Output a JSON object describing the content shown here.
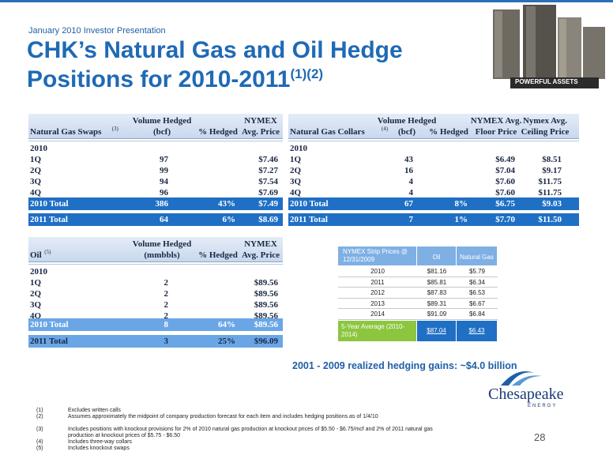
{
  "header": {
    "kicker": "January 2010 Investor Presentation",
    "title_line1": "CHK’s Natural Gas and Oil Hedge",
    "title_line2": "Positions for 2010-2011",
    "title_notes": "(1)(2)",
    "badge": "POWERFUL ASSETS"
  },
  "gas_swaps": {
    "header_top": [
      null,
      "Volume Hedged",
      null,
      "NYMEX"
    ],
    "header": [
      "Natural Gas Swaps",
      "(bcf)",
      "% Hedged",
      "Avg. Price"
    ],
    "header_note": "(3)",
    "group": "2010",
    "rows": [
      [
        "1Q",
        "97",
        null,
        "$7.46"
      ],
      [
        "2Q",
        "99",
        null,
        "$7.27"
      ],
      [
        "3Q",
        "94",
        null,
        "$7.54"
      ],
      [
        "4Q",
        "96",
        null,
        "$7.69"
      ]
    ],
    "totals": [
      [
        "2010 Total",
        "386",
        "43%",
        "$7.49"
      ],
      [
        "2011 Total",
        "64",
        "6%",
        "$8.69"
      ]
    ]
  },
  "gas_collars": {
    "header_top": [
      null,
      "Volume Hedged",
      null,
      "NYMEX Avg.",
      "Nymex Avg."
    ],
    "header": [
      "Natural Gas Collars",
      "(bcf)",
      "% Hedged",
      "Floor Price",
      "Ceiling Price"
    ],
    "header_note": "(4)",
    "group": "2010",
    "rows": [
      [
        "1Q",
        "43",
        null,
        "$6.49",
        "$8.51"
      ],
      [
        "2Q",
        "16",
        null,
        "$7.04",
        "$9.17"
      ],
      [
        "3Q",
        "4",
        null,
        "$7.60",
        "$11.75"
      ],
      [
        "4Q",
        "4",
        null,
        "$7.60",
        "$11.75"
      ]
    ],
    "totals": [
      [
        "2010 Total",
        "67",
        "8%",
        "$6.75",
        "$9.03"
      ],
      [
        "2011 Total",
        "7",
        "1%",
        "$7.70",
        "$11.50"
      ]
    ]
  },
  "oil": {
    "header_top": [
      null,
      "Volume Hedged",
      null,
      "NYMEX"
    ],
    "header": [
      "Oil",
      "(mmbbls)",
      "% Hedged",
      "Avg. Price"
    ],
    "header_note": "(5)",
    "group": "2010",
    "rows": [
      [
        "1Q",
        "2",
        null,
        "$89.56"
      ],
      [
        "2Q",
        "2",
        null,
        "$89.56"
      ],
      [
        "3Q",
        "2",
        null,
        "$89.56"
      ],
      [
        "4Q",
        "2",
        null,
        "$89.56"
      ]
    ],
    "totals": [
      [
        "2010 Total",
        "8",
        "64%",
        "$89.56"
      ],
      [
        "2011 Total",
        "3",
        "25%",
        "$96.09"
      ]
    ]
  },
  "strip_prices": {
    "header": [
      "NYMEX Strip Prices @ 12/31/2009",
      "Oil",
      "Natural Gas"
    ],
    "rows": [
      [
        "2010",
        "$81.16",
        "$5.79"
      ],
      [
        "2011",
        "$85.81",
        "$6.34"
      ],
      [
        "2012",
        "$87.83",
        "$6.53"
      ],
      [
        "2013",
        "$89.31",
        "$6.67"
      ],
      [
        "2014",
        "$91.09",
        "$6.84"
      ]
    ],
    "average": [
      "5-Year Average (2010-2014)",
      "$87.04",
      "$6.43"
    ]
  },
  "realized_gains": "2001 - 2009 realized hedging gains:  ~$4.0 billion",
  "logo": {
    "name": "Chesapeake",
    "tagline": "ENERGY"
  },
  "footnotes": [
    [
      "(1)",
      "Excludes written calls"
    ],
    [
      "(2)",
      "Assumes approximately the midpoint of company production forecast for each item and includes hedging positions as of 1/4/10"
    ],
    [
      "(3)",
      "Includes positions with knockout provisions for 2% of 2010 natural gas production at knockout prices of $5.50 - $6.75/mcf and 2% of 2011 natural gas production at knockout prices of $5.75 - $6.50"
    ],
    [
      "(4)",
      "Includes three-way collars"
    ],
    [
      "(5)",
      "Includes knockout swaps"
    ]
  ],
  "page_number": "28"
}
